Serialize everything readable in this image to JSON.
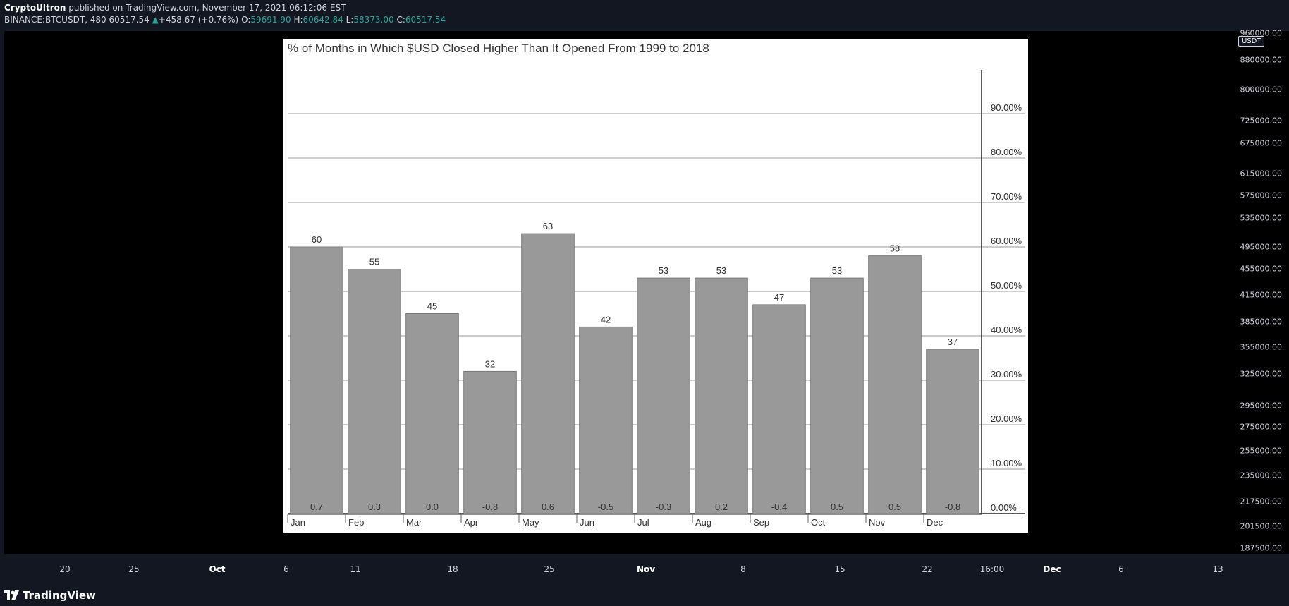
{
  "header": {
    "author": "CryptoUltron",
    "published_text": "published on TradingView.com, November 17, 2021 06:12:06 EST",
    "symbol": "BINANCE:BTCUSDT, 480",
    "last_price": "60517.54",
    "change": "+458.67 (+0.76%)",
    "open_label": "O:",
    "open": "59691.90",
    "high_label": "H:",
    "high": "60642.84",
    "low_label": "L:",
    "low": "58373.00",
    "close_label": "C:",
    "close": "60517.54"
  },
  "price_scale": {
    "currency": "USDT",
    "labels": [
      "960000.00",
      "880000.00",
      "800000.00",
      "725000.00",
      "675000.00",
      "615000.00",
      "575000.00",
      "535000.00",
      "495000.00",
      "455000.00",
      "415000.00",
      "385000.00",
      "355000.00",
      "325000.00",
      "295000.00",
      "275000.00",
      "255000.00",
      "235000.00",
      "217500.00",
      "201500.00",
      "187500.00"
    ]
  },
  "time_axis": {
    "labels": [
      "20",
      "25",
      "Oct",
      "6",
      "11",
      "18",
      "25",
      "Nov",
      "8",
      "15",
      "22",
      "16:00",
      "Dec",
      "6",
      "13"
    ],
    "bold": [
      "Oct",
      "Nov",
      "Dec"
    ]
  },
  "footer": {
    "brand": "TradingView"
  },
  "colors": {
    "bar": "#999999",
    "up": "#26a69a",
    "background": "#000000",
    "panel": "#131722"
  },
  "chart_data": {
    "type": "bar",
    "title": "% of Months in Which $USD Closed Higher Than It Opened From 1999 to 2018",
    "categories": [
      "Jan",
      "Feb",
      "Mar",
      "Apr",
      "May",
      "Jun",
      "Jul",
      "Aug",
      "Sep",
      "Oct",
      "Nov",
      "Dec"
    ],
    "values": [
      60,
      55,
      45,
      32,
      63,
      42,
      53,
      53,
      47,
      53,
      58,
      37
    ],
    "bottom_labels": [
      "0.7",
      "0.3",
      "0.0",
      "-0.8",
      "0.6",
      "-0.5",
      "-0.3",
      "0.2",
      "-0.4",
      "0.5",
      "0.5",
      "-0.8"
    ],
    "y_ticks": [
      "0.00%",
      "10.00%",
      "20.00%",
      "30.00%",
      "40.00%",
      "50.00%",
      "60.00%",
      "70.00%",
      "80.00%",
      "90.00%"
    ],
    "ylim": [
      0,
      100
    ],
    "grid": true
  }
}
